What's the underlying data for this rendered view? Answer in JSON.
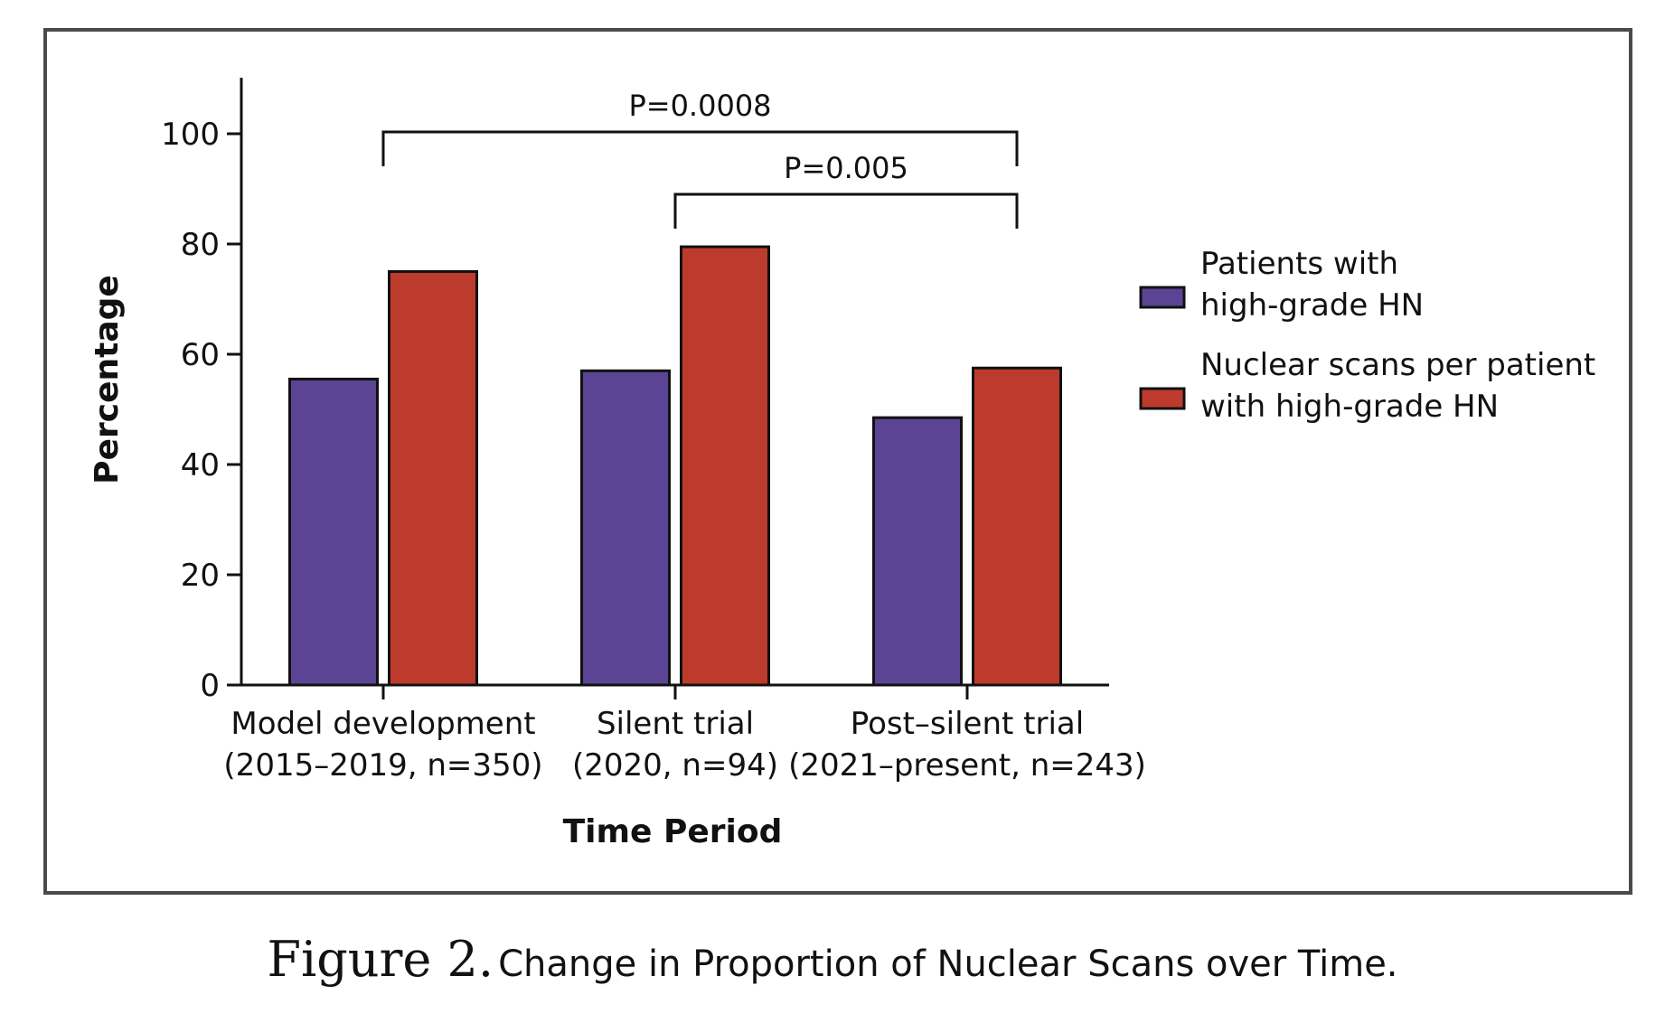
{
  "caption": {
    "figure_label": "Figure 2.",
    "text": "Change in Proportion of Nuclear Scans over Time."
  },
  "chart_data": {
    "type": "bar",
    "title": "",
    "xlabel": "Time Period",
    "ylabel": "Percentage",
    "ylim": [
      0,
      110
    ],
    "yticks": [
      0,
      20,
      40,
      60,
      80,
      100
    ],
    "grid": false,
    "legend_position": "right",
    "categories": [
      [
        "Model development",
        "(2015–2019, n=350)"
      ],
      [
        "Silent trial",
        "(2020, n=94)"
      ],
      [
        "Post–silent trial",
        "(2021–present, n=243)"
      ]
    ],
    "series": [
      {
        "name": [
          "Patients with",
          "high-grade HN"
        ],
        "color": "#5b4493",
        "values": [
          55.5,
          57,
          48.5
        ]
      },
      {
        "name": [
          "Nuclear scans per patient",
          "with high-grade HN"
        ],
        "color": "#bd3b2c",
        "values": [
          75,
          79.5,
          57.5
        ]
      }
    ],
    "annotations": [
      {
        "label": "P=0.0008",
        "from_category": 0,
        "to_category": 2,
        "level": 1
      },
      {
        "label": "P=0.005",
        "from_category": 1,
        "to_category": 2,
        "level": 2
      }
    ]
  }
}
